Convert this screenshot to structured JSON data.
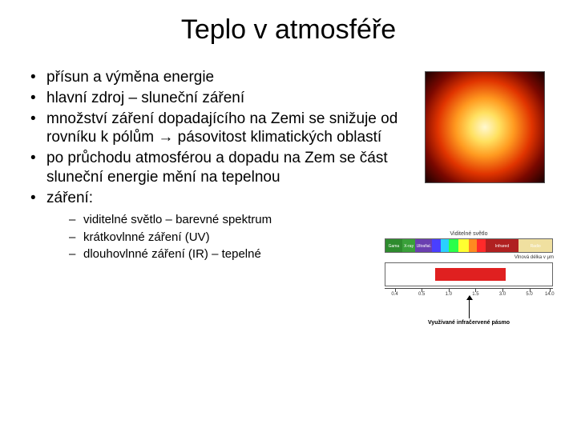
{
  "title": "Teplo v atmosféře",
  "title_fontsize": 34,
  "body_fontsize": 19,
  "sub_fontsize": 15,
  "bullets": [
    "přísun a výměna energie",
    "hlavní zdroj – sluneční záření",
    "množství záření dopadajícího na Zemi se snižuje od rovníku k pólům → pásovitost klimatických oblastí",
    "po průchodu atmosférou a dopadu na Zem se část sluneční energie mění na tepelnou",
    "záření:"
  ],
  "sub_bullets": [
    "viditelné světlo – barevné spektrum",
    "krátkovlnné záření (UV)",
    "dlouhovlnné záření (IR) – tepelné"
  ],
  "sun": {
    "colors_stop": [
      "#fff8d0",
      "#ffe060",
      "#ff9a20",
      "#e03400",
      "#7a0800",
      "#1a0000"
    ]
  },
  "spectrum": {
    "top_label": "Viditelné světlo",
    "right_label": "Vlnová délka v μm",
    "segments": [
      {
        "label": "Gama",
        "color": "#2e8b2e",
        "width_pct": 10
      },
      {
        "label": "X-ray",
        "color": "#3aa03a",
        "width_pct": 8
      },
      {
        "label": "Ultrafial.",
        "color": "#6a3fb0",
        "width_pct": 10
      },
      {
        "label": "",
        "color": "#4a3fff",
        "width_pct": 5
      },
      {
        "label": "",
        "color": "#2ad0ff",
        "width_pct": 5
      },
      {
        "label": "",
        "color": "#2aff4a",
        "width_pct": 6
      },
      {
        "label": "",
        "color": "#ffff30",
        "width_pct": 6
      },
      {
        "label": "",
        "color": "#ff8a20",
        "width_pct": 5
      },
      {
        "label": "",
        "color": "#ff2a2a",
        "width_pct": 5
      },
      {
        "label": "Infrared",
        "color": "#b02020",
        "width_pct": 20
      },
      {
        "label": "Radio",
        "color": "#f0e0a0",
        "width_pct": 20
      }
    ],
    "ir_band": {
      "left_pct": 30,
      "width_pct": 42,
      "color": "#e02020"
    },
    "axis_ticks": [
      {
        "pos_pct": 6,
        "label": "0.4"
      },
      {
        "pos_pct": 22,
        "label": "0.5"
      },
      {
        "pos_pct": 38,
        "label": "1.0"
      },
      {
        "pos_pct": 54,
        "label": "1.5"
      },
      {
        "pos_pct": 70,
        "label": "3.0"
      },
      {
        "pos_pct": 86,
        "label": "5.0"
      },
      {
        "pos_pct": 98,
        "label": "14.0"
      }
    ],
    "ir_caption": "Využívané infračervené pásmo"
  }
}
